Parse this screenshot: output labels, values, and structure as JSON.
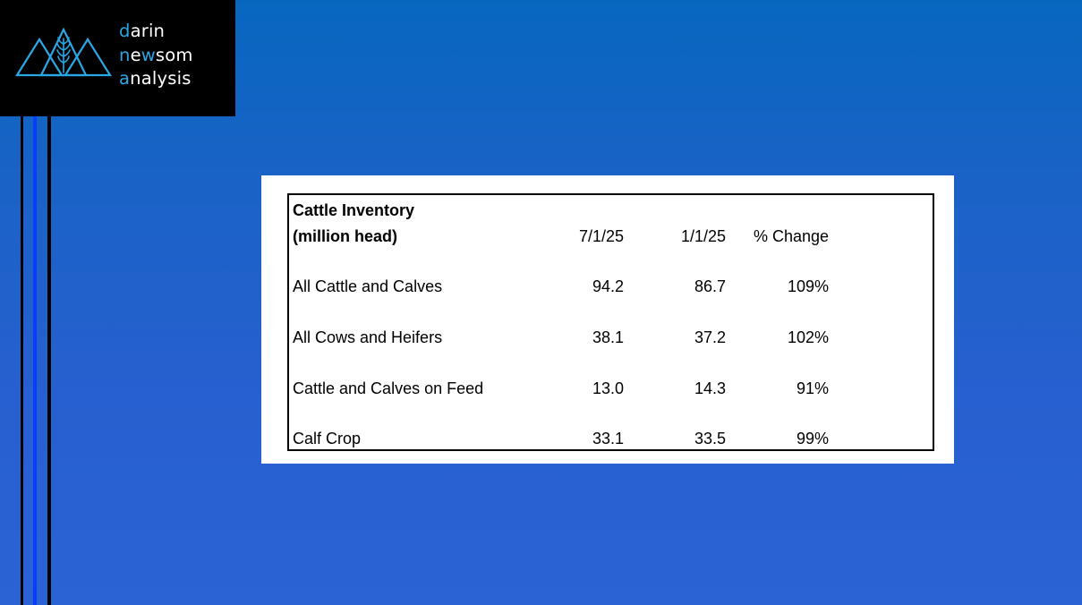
{
  "logo": {
    "lines": [
      {
        "accent": "d",
        "rest_before": "",
        "rest": "arin"
      },
      {
        "accent": "n",
        "mid_plain": "e",
        "accent2": "w",
        "rest": "som"
      },
      {
        "accent": "a",
        "rest": "nalysis"
      }
    ],
    "icon": "mountains-wheat-logo",
    "colors": {
      "accent": "#2aa8e6",
      "background": "#000000",
      "text": "#ffffff"
    }
  },
  "table": {
    "title_line1": "Cattle Inventory",
    "title_line2": "(million head)",
    "columns": [
      "7/1/25",
      "1/1/25",
      "% Change"
    ],
    "rows": [
      {
        "label": "All Cattle and Calves",
        "values": [
          "94.2",
          "86.7",
          "109%"
        ]
      },
      {
        "label": "All Cows and Heifers",
        "values": [
          "38.1",
          "37.2",
          "102%"
        ]
      },
      {
        "label": "Cattle and Calves on Feed",
        "values": [
          "13.0",
          "14.3",
          "91%"
        ]
      },
      {
        "label": "Calf Crop",
        "values": [
          "33.1",
          "33.5",
          "99%"
        ]
      }
    ]
  },
  "colors": {
    "background_top": "#0767bf",
    "background_bottom": "#2b62d4",
    "stripe_blue": "#0a3cff"
  }
}
